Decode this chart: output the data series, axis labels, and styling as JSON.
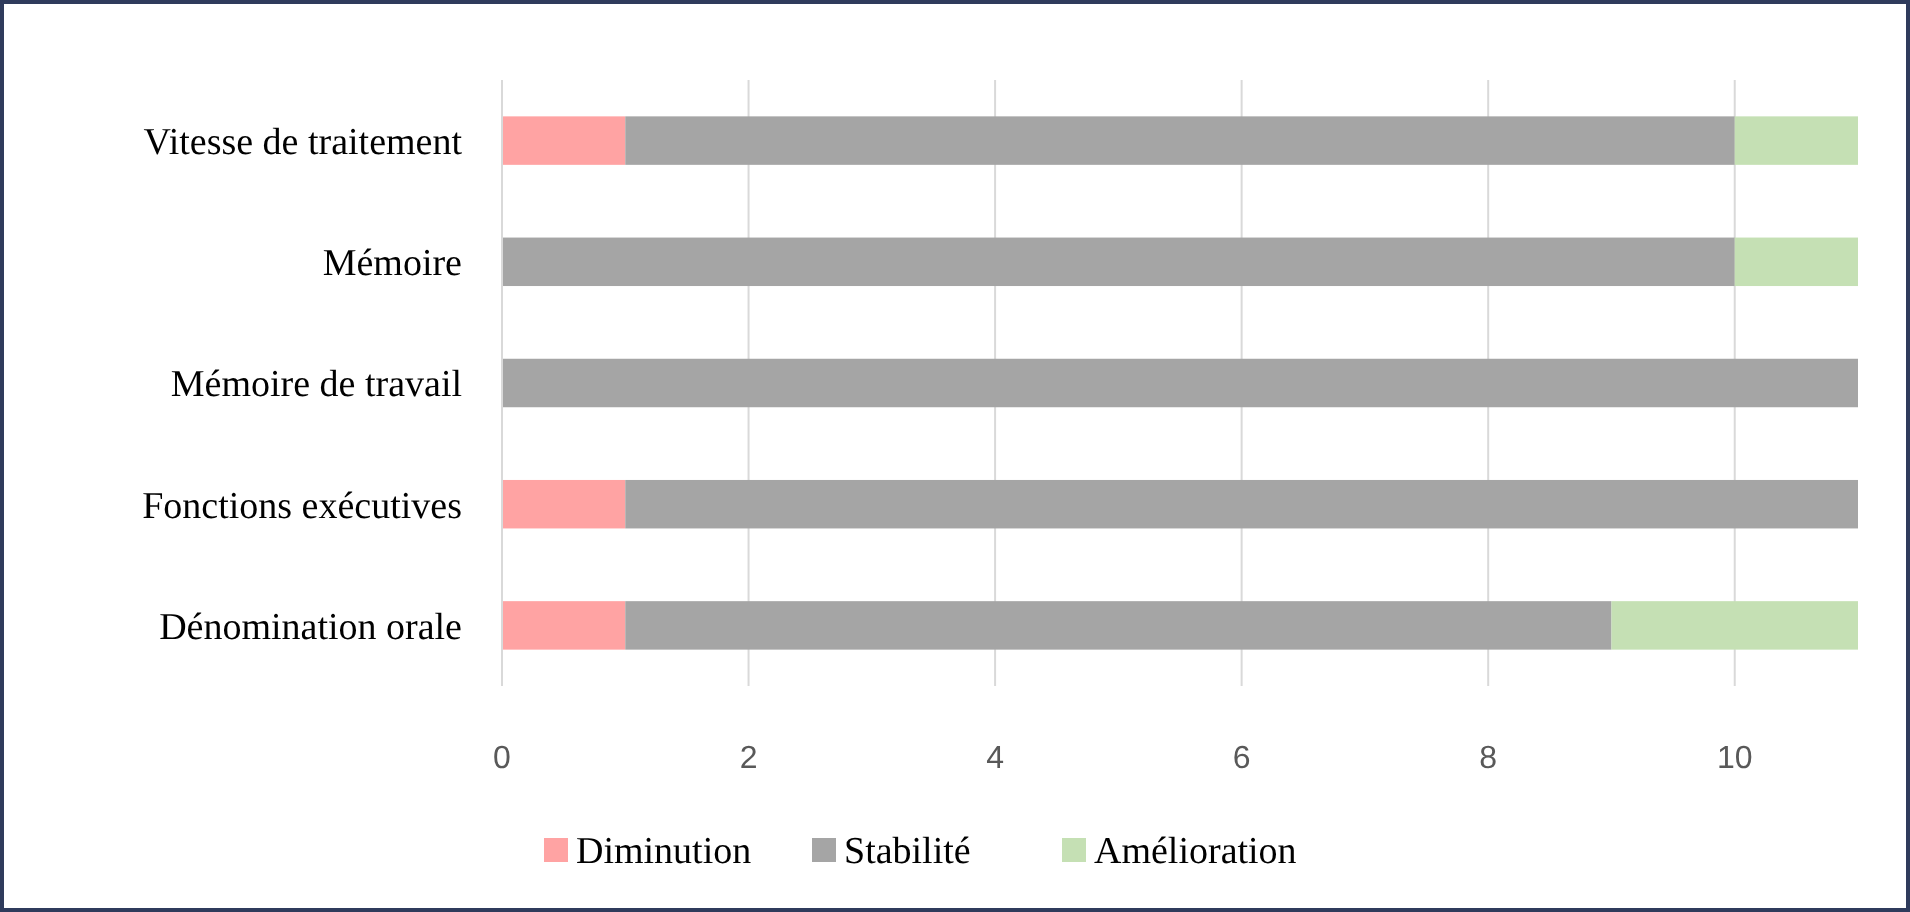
{
  "chart_data": {
    "type": "bar",
    "orientation": "horizontal",
    "stacked": true,
    "categories": [
      "Vitesse de traitement",
      "Mémoire",
      "Mémoire de travail",
      "Fonctions exécutives",
      "Dénomination orale"
    ],
    "series": [
      {
        "name": "Diminution",
        "color": "#ffa3a3",
        "values": [
          1,
          0,
          0,
          1,
          1
        ]
      },
      {
        "name": "Stabilité",
        "color": "#a5a5a5",
        "values": [
          9,
          10,
          11,
          10,
          8
        ]
      },
      {
        "name": "Amélioration",
        "color": "#c5e0b4",
        "values": [
          1,
          1,
          0,
          0,
          2
        ]
      }
    ],
    "xlim": [
      0,
      11
    ],
    "xticks": [
      0,
      2,
      4,
      6,
      8,
      10
    ],
    "grid": "x",
    "legend": "bottom"
  }
}
